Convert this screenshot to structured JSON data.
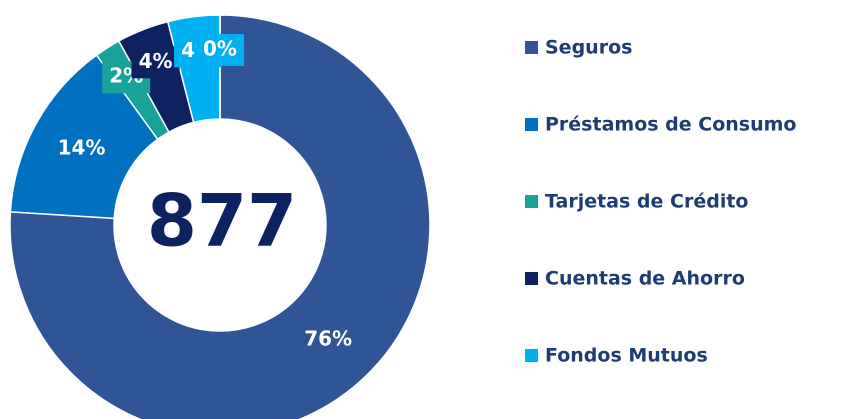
{
  "chart_data": {
    "type": "donut",
    "center_label": "877",
    "categories": [
      "Seguros",
      "Préstamos de Consumo",
      "Tarjetas de Crédito",
      "Cuentas de Ahorro",
      "Fondos Mutuos",
      null
    ],
    "values": [
      76,
      14,
      2,
      4,
      4,
      0
    ],
    "value_labels": [
      "76%",
      "14%",
      "2%",
      "4%",
      "4%",
      "0%"
    ],
    "colors": [
      "#2f5597",
      "#0070c0",
      "#17a39a",
      "#0e2160",
      "#00b0f0",
      "#00b0f0"
    ],
    "legend": "right"
  }
}
